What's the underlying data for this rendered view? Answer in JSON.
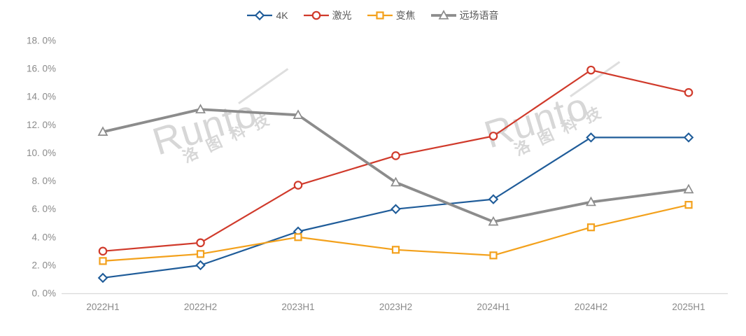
{
  "chart_data": {
    "type": "line",
    "title": "",
    "xlabel": "",
    "ylabel": "",
    "categories": [
      "2022H1",
      "2022H2",
      "2023H1",
      "2023H2",
      "2024H1",
      "2024H2",
      "2025H1"
    ],
    "series": [
      {
        "name": "4K",
        "marker": "diamond",
        "color": "#1F5C99",
        "line_width": 2.2,
        "values": [
          1.1,
          2.0,
          4.4,
          6.0,
          6.7,
          11.1,
          11.1
        ]
      },
      {
        "name": "激光",
        "marker": "circle",
        "color": "#D03A2B",
        "line_width": 2.2,
        "values": [
          3.0,
          3.6,
          7.7,
          9.8,
          11.2,
          15.9,
          14.3
        ]
      },
      {
        "name": "变焦",
        "marker": "square",
        "color": "#F3A11C",
        "line_width": 2.2,
        "values": [
          2.3,
          2.8,
          4.0,
          3.1,
          2.7,
          4.7,
          6.3
        ]
      },
      {
        "name": "远场语音",
        "marker": "triangle",
        "color": "#8C8C8C",
        "line_width": 3.8,
        "values": [
          11.5,
          13.1,
          12.7,
          7.9,
          5.1,
          6.5,
          7.4
        ]
      }
    ],
    "ylim": [
      0,
      18
    ],
    "ytick_step": 2,
    "ytick_labels": [
      "0. 0%",
      "2. 0%",
      "4. 0%",
      "6. 0%",
      "8. 0%",
      "10. 0%",
      "12. 0%",
      "14. 0%",
      "16. 0%",
      "18. 0%"
    ],
    "grid": false,
    "legend_position": "top",
    "axis_line_color": "#d9d9d9",
    "tick_text_color": "#8a8a8a",
    "legend_text_color": "#595959"
  },
  "watermark": {
    "brand": "Runto",
    "company_cn": "洛图科技",
    "color": "#d7d7d7"
  }
}
